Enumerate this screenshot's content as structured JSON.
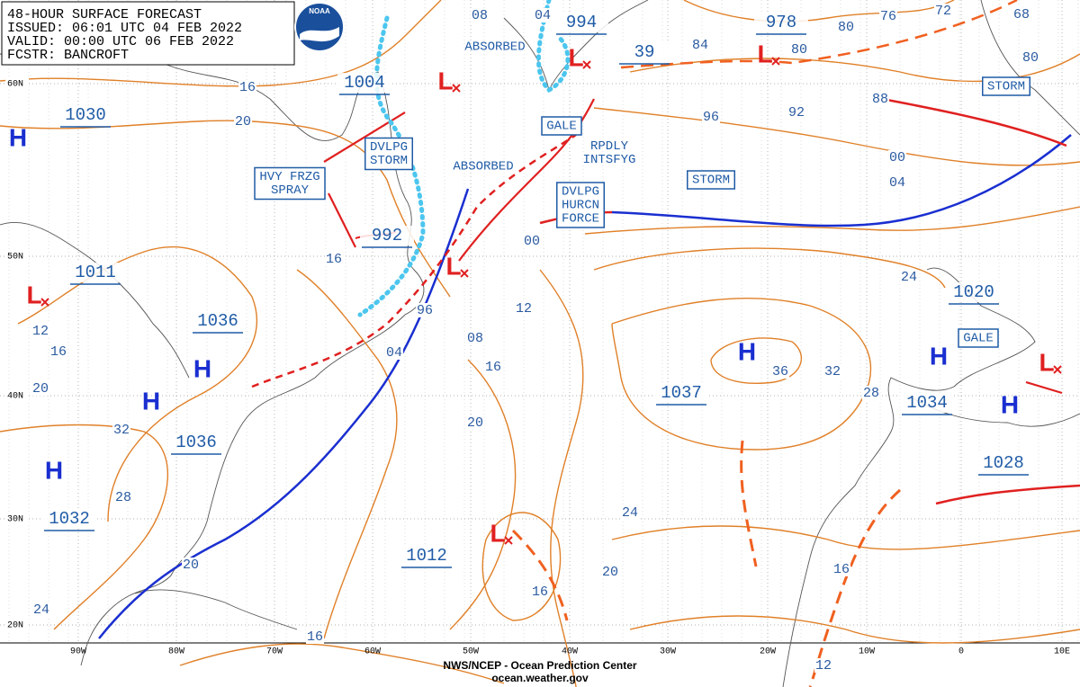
{
  "header": {
    "title": "48-HOUR SURFACE FORECAST",
    "issued": "ISSUED: 06:01 UTC 04 FEB 2022",
    "valid": "VALID:  00:00 UTC 06 FEB 2022",
    "forecaster": "FCSTR: BANCROFT",
    "logo": "NOAA"
  },
  "pressure_centers": [
    "1030",
    "1004",
    "994",
    "978",
    "992",
    "1011",
    "1036",
    "1037",
    "1036",
    "1034",
    "1028",
    "1032",
    "1012",
    "1020",
    "39"
  ],
  "high_symbol": "H",
  "low_symbol": "L",
  "isobar_labels": [
    "16",
    "20",
    "08",
    "04",
    "84",
    "80",
    "80",
    "76",
    "72",
    "68",
    "80",
    "88",
    "96",
    "92",
    "00",
    "04",
    "00",
    "24",
    "16",
    "96",
    "12",
    "08",
    "04",
    "16",
    "36",
    "32",
    "28",
    "20",
    "32",
    "28",
    "24",
    "20",
    "16",
    "16",
    "12",
    "16",
    "20",
    "20",
    "24",
    "16",
    "12"
  ],
  "annotations": [
    [
      "ABSORBED"
    ],
    [
      "ABSORBED"
    ],
    [
      "DVLPG",
      "STORM"
    ],
    [
      "HVY FRZG",
      "SPRAY"
    ],
    [
      "GALE"
    ],
    [
      "RPDLY",
      "INTSFYG"
    ],
    [
      "STORM"
    ],
    [
      "DVLPG",
      "HURCN",
      "FORCE"
    ],
    [
      "STORM"
    ],
    [
      "GALE"
    ]
  ],
  "latitudes": [
    "60N",
    "50N",
    "40N",
    "30N",
    "20N"
  ],
  "longitudes": [
    "90W",
    "80W",
    "70W",
    "60W",
    "50W",
    "40W",
    "30W",
    "20W",
    "10W",
    "0",
    "10E"
  ],
  "footer": [
    "NWS/NCEP - Ocean Prediction Center",
    "ocean.weather.gov"
  ]
}
